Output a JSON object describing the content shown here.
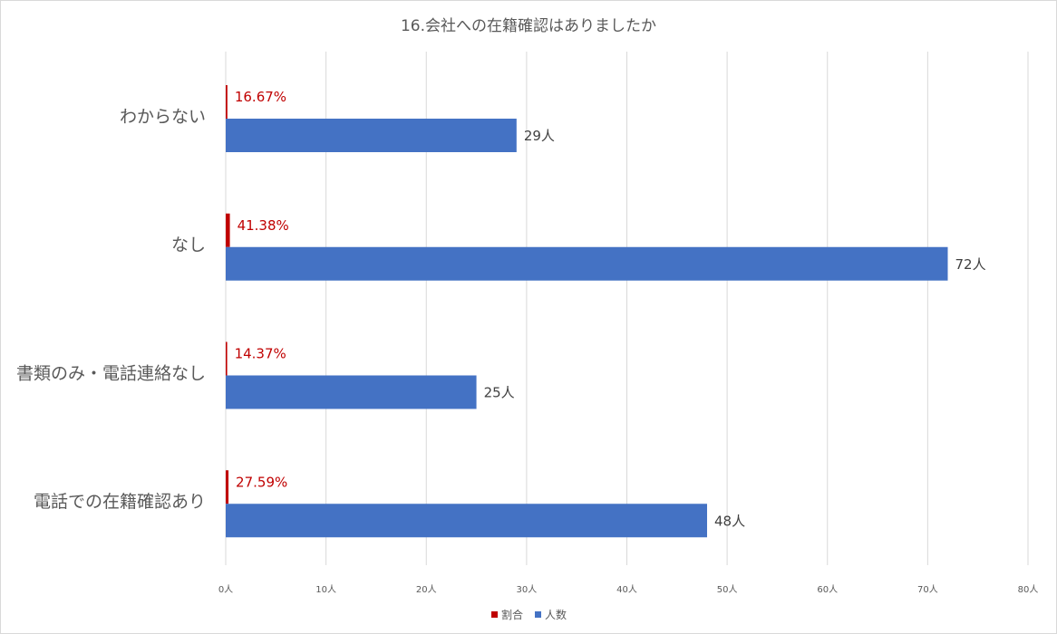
{
  "chart_data": {
    "type": "bar",
    "orientation": "horizontal",
    "title": "16.会社への在籍確認はありましたか",
    "categories": [
      "わからない",
      "なし",
      "書類のみ・電話連絡なし",
      "電話での在籍確認あり"
    ],
    "series": [
      {
        "name": "割合",
        "color": "#c00000",
        "values": [
          0.1667,
          0.4138,
          0.1437,
          0.2759
        ],
        "labels": [
          "16.67%",
          "41.38%",
          "14.37%",
          "27.59%"
        ]
      },
      {
        "name": "人数",
        "color": "#4472c4",
        "values": [
          29,
          72,
          25,
          48
        ],
        "labels": [
          "29人",
          "72人",
          "25人",
          "48人"
        ]
      }
    ],
    "xlim": [
      0,
      80
    ],
    "ticks": [
      {
        "value": 0,
        "label": "0人"
      },
      {
        "value": 10,
        "label": "10人"
      },
      {
        "value": 20,
        "label": "20人"
      },
      {
        "value": 30,
        "label": "30人"
      },
      {
        "value": 40,
        "label": "40人"
      },
      {
        "value": 50,
        "label": "50人"
      },
      {
        "value": 60,
        "label": "60人"
      },
      {
        "value": 70,
        "label": "70人"
      },
      {
        "value": 80,
        "label": "80人"
      }
    ],
    "grid": true,
    "legend_position": "bottom"
  }
}
